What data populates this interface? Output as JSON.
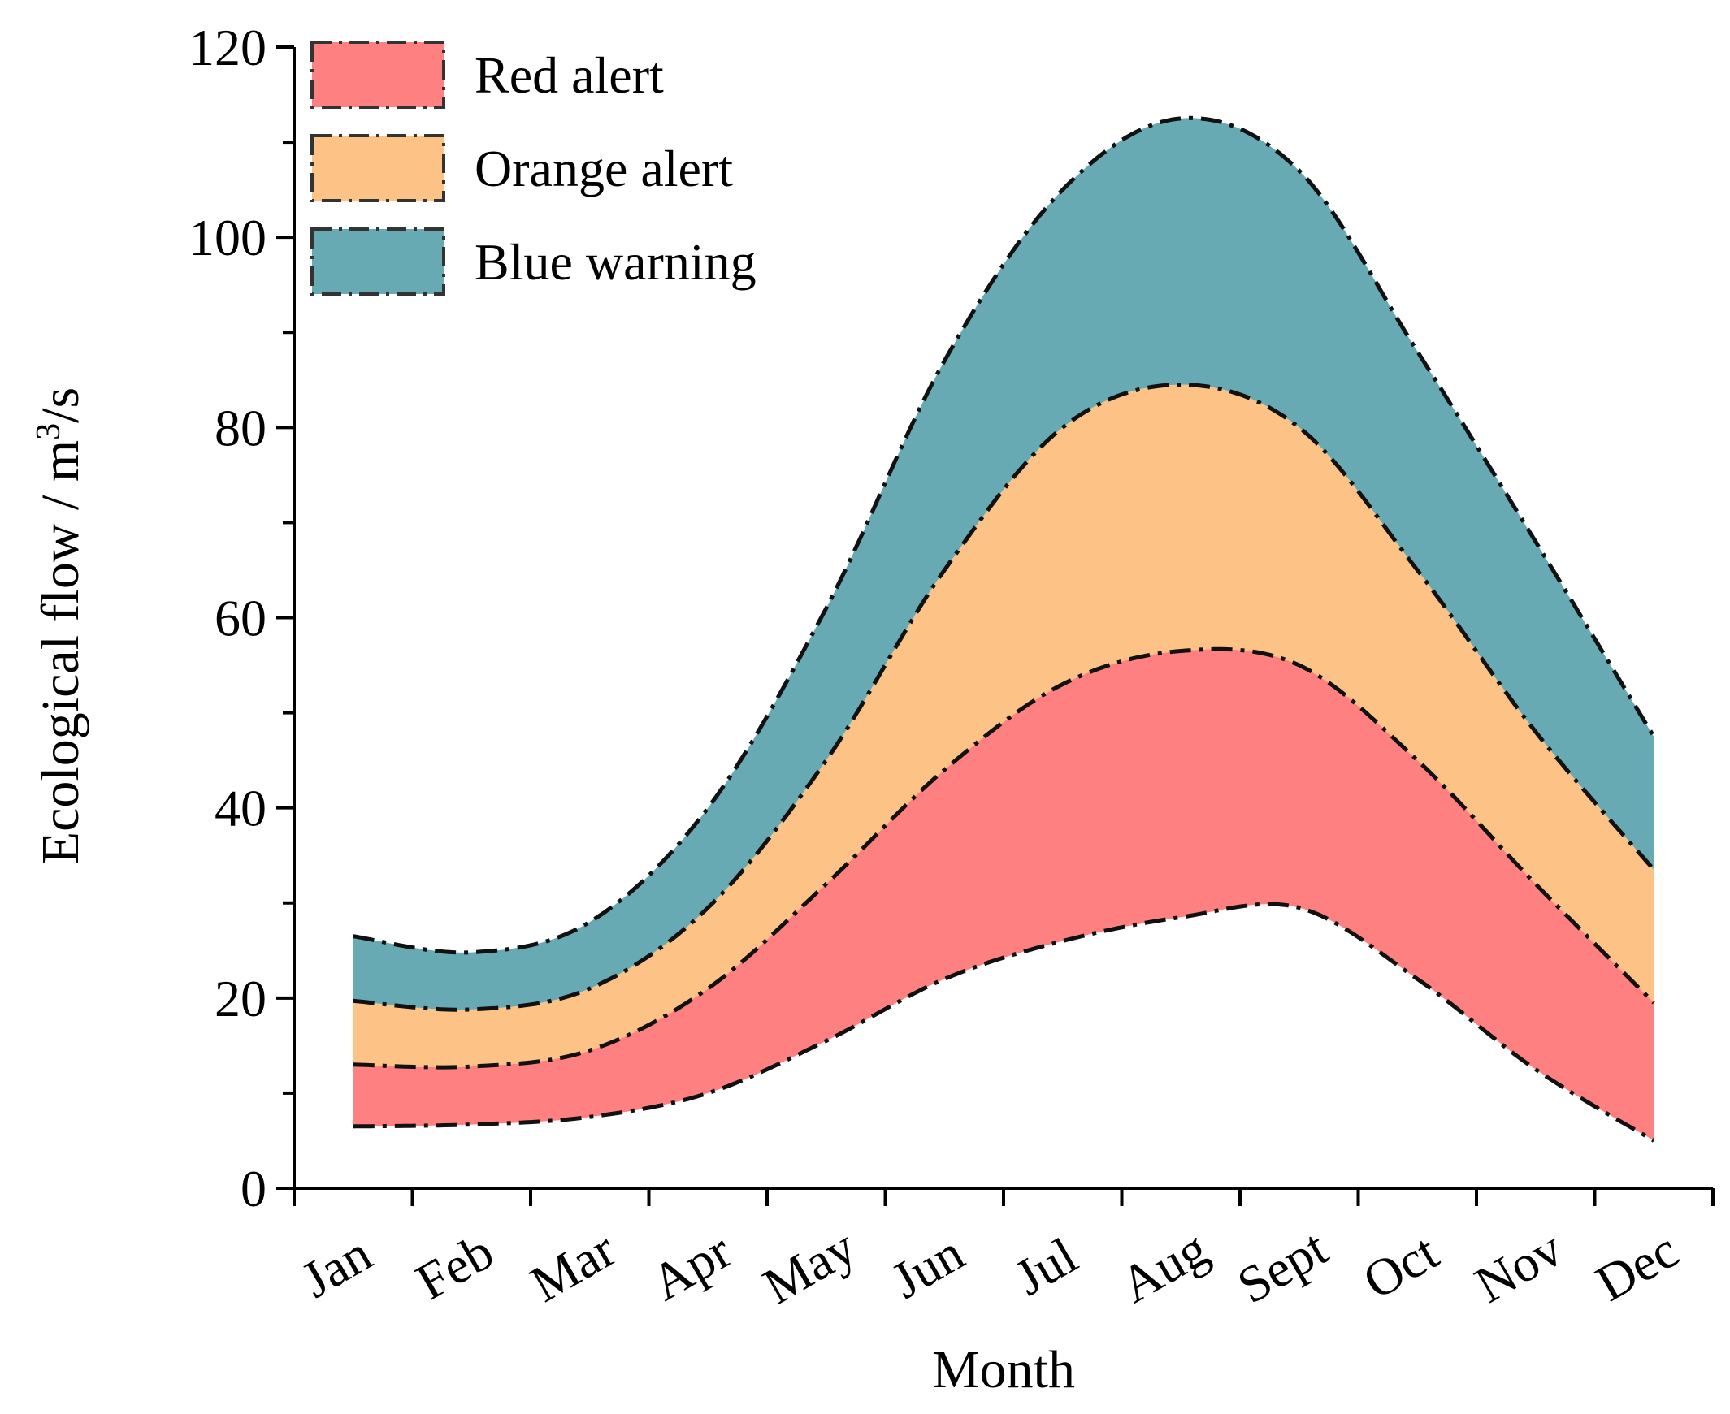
{
  "chart_data": {
    "type": "area",
    "title": "",
    "xlabel": "Month",
    "ylabel": "Ecological flow / m",
    "ylabel_superscript": "3",
    "ylabel_suffix": "/s",
    "ylim": [
      0,
      120
    ],
    "yticks": [
      0,
      20,
      40,
      60,
      80,
      100,
      120
    ],
    "categories": [
      "Jan",
      "Feb",
      "Mar",
      "Apr",
      "May",
      "Jun",
      "Jul",
      "Aug",
      "Sept",
      "Oct",
      "Nov",
      "Dec"
    ],
    "boundaries": [
      {
        "name": "lower",
        "values": [
          6.5,
          6.7,
          7.5,
          10.0,
          15.5,
          22.0,
          26.0,
          28.5,
          29.5,
          22.0,
          12.5,
          5.0
        ]
      },
      {
        "name": "red-upper",
        "values": [
          13.0,
          12.8,
          14.5,
          21.0,
          32.0,
          44.0,
          53.0,
          56.5,
          55.0,
          45.0,
          32.0,
          19.5
        ]
      },
      {
        "name": "orange-upper",
        "values": [
          19.7,
          18.8,
          21.0,
          29.5,
          45.0,
          65.0,
          80.0,
          84.5,
          80.0,
          65.0,
          48.0,
          33.5
        ]
      },
      {
        "name": "blue-upper",
        "values": [
          26.5,
          24.8,
          28.0,
          40.0,
          61.0,
          87.0,
          105.0,
          112.5,
          107.0,
          88.0,
          68.0,
          47.5
        ]
      }
    ],
    "series": [
      {
        "name": "Red alert",
        "color": "#ff8080",
        "lower": "lower",
        "upper": "red-upper"
      },
      {
        "name": "Orange alert",
        "color": "#fdc285",
        "lower": "red-upper",
        "upper": "orange-upper"
      },
      {
        "name": "Blue warning",
        "color": "#67aab4",
        "lower": "orange-upper",
        "upper": "blue-upper"
      }
    ],
    "legend_position": "top-left",
    "grid": false
  }
}
